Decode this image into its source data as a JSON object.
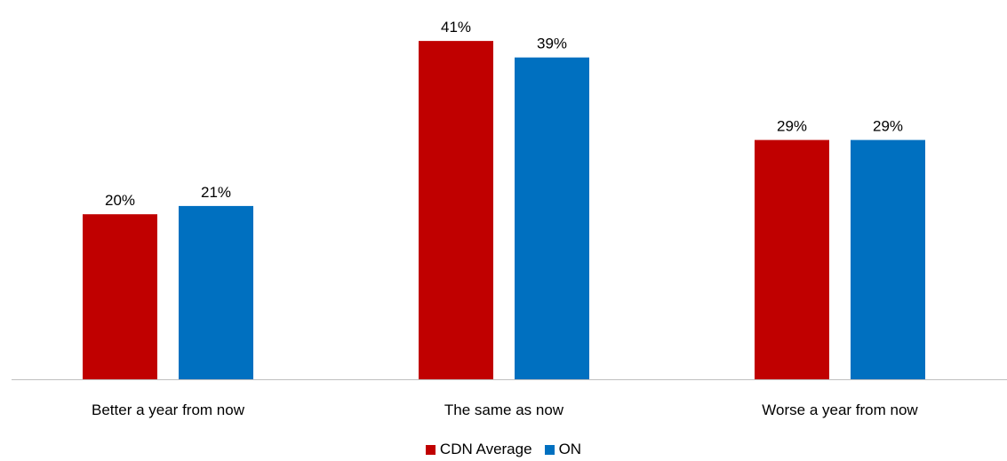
{
  "chart_data": {
    "type": "bar",
    "categories": [
      "Better a year from now",
      "The same as now",
      "Worse a year from now"
    ],
    "series": [
      {
        "name": "CDN Average",
        "values": [
          20,
          41,
          29
        ],
        "labels": [
          "20%",
          "41%",
          "29%"
        ],
        "color": "#C00000"
      },
      {
        "name": "ON",
        "values": [
          21,
          39,
          29
        ],
        "labels": [
          "21%",
          "39%",
          "29%"
        ],
        "color": "#0070C0"
      }
    ],
    "title": "",
    "xlabel": "",
    "ylabel": "",
    "ylim": [
      0,
      45
    ],
    "grid": false,
    "legend": "bottom-center",
    "axis_color": "#BFBFBF"
  }
}
